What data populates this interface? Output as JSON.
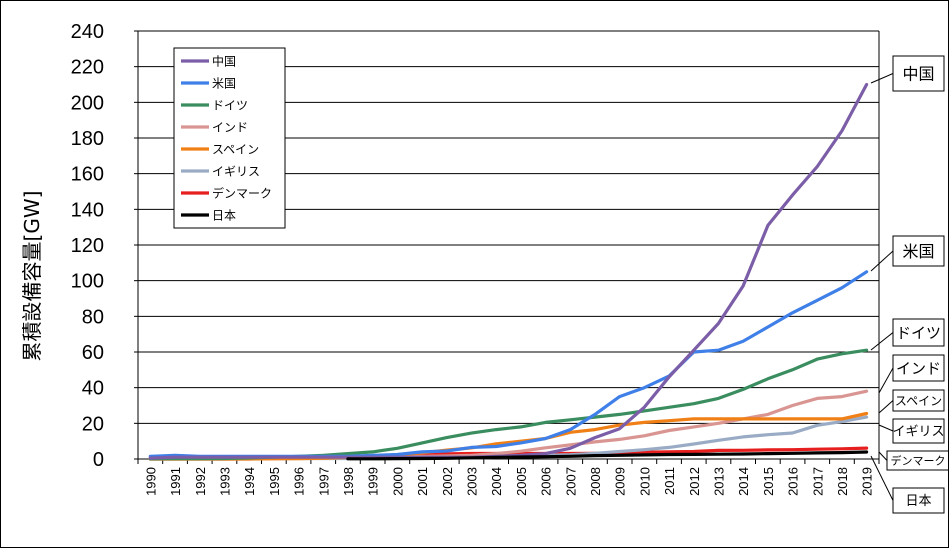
{
  "chart_data": {
    "type": "line",
    "ylabel": "累積設備容量[GW]",
    "xlabel": "",
    "ylim": [
      0,
      240
    ],
    "yticks": [
      0,
      20,
      40,
      60,
      80,
      100,
      120,
      140,
      160,
      180,
      200,
      220,
      240
    ],
    "grid": true,
    "legend_position": "top-left",
    "categories": [
      "1990",
      "1991",
      "1992",
      "1993",
      "1994",
      "1995",
      "1996",
      "1997",
      "1998",
      "1999",
      "2000",
      "2001",
      "2002",
      "2003",
      "2004",
      "2005",
      "2006",
      "2007",
      "2008",
      "2009",
      "2010",
      "2011",
      "2012",
      "2013",
      "2014",
      "2015",
      "2016",
      "2017",
      "2018",
      "2019"
    ],
    "series": [
      {
        "name": "中国",
        "color": "#7b5ea7",
        "values": [
          0.5,
          1,
          1,
          1,
          1,
          1,
          1,
          1,
          1,
          1,
          1,
          1,
          1,
          1,
          1.5,
          2,
          3,
          6,
          12,
          17,
          29,
          46,
          61,
          76,
          97,
          131,
          148,
          164,
          184,
          210
        ],
        "callout": "中国"
      },
      {
        "name": "米国",
        "color": "#3f7fe8",
        "values": [
          1.5,
          2,
          1.5,
          1.5,
          1.5,
          1.5,
          1.5,
          1.5,
          1.5,
          2,
          2.5,
          4,
          4.5,
          6.5,
          7,
          9,
          11.5,
          16.5,
          25,
          35,
          40,
          46.5,
          60,
          61,
          66,
          74,
          82,
          89,
          96,
          105
        ],
        "callout": "米国"
      },
      {
        "name": "ドイツ",
        "color": "#3a8d5f",
        "values": [
          0.1,
          0.2,
          0.2,
          0.3,
          0.6,
          1,
          1.5,
          2,
          3,
          4,
          6,
          9,
          12,
          14.5,
          16.5,
          18,
          20.5,
          22,
          23.5,
          25,
          27,
          29,
          31,
          34,
          39,
          45,
          50,
          56,
          59,
          61
        ],
        "callout": "ドイツ"
      },
      {
        "name": "インド",
        "color": "#d99591",
        "values": [
          0,
          0,
          0,
          0,
          0.1,
          0.3,
          0.6,
          0.8,
          1,
          1.1,
          1.2,
          1.5,
          1.7,
          2.1,
          3,
          4.4,
          6.3,
          7.9,
          9.6,
          11,
          13,
          16,
          18,
          20,
          22.5,
          25,
          30,
          34,
          35,
          38
        ],
        "callout": "インド"
      },
      {
        "name": "スペイン",
        "color": "#f07f16",
        "values": [
          0,
          0,
          0,
          0,
          0,
          0.1,
          0.2,
          0.4,
          0.9,
          1.5,
          2.2,
          3.5,
          5,
          6.2,
          8.5,
          10,
          11.5,
          15,
          16.5,
          19,
          20.5,
          21.5,
          22.5,
          22.5,
          22.5,
          22.5,
          22.5,
          22.5,
          22.5,
          25.5
        ],
        "callout": "スペイン"
      },
      {
        "name": "イギリス",
        "color": "#9aacc5",
        "values": [
          0,
          0,
          0,
          0,
          0,
          0.2,
          0.3,
          0.3,
          0.3,
          0.4,
          0.4,
          0.5,
          0.6,
          0.7,
          0.9,
          1.3,
          2,
          2.4,
          3.2,
          4.2,
          5.2,
          6.5,
          8.4,
          10.5,
          12.4,
          13.6,
          14.6,
          18.9,
          21,
          23.5
        ],
        "callout": "イギリス"
      },
      {
        "name": "デンマーク",
        "color": "#e61e1e",
        "values": [
          0.3,
          0.4,
          0.5,
          0.5,
          0.5,
          0.6,
          0.8,
          1.1,
          1.4,
          1.7,
          2.4,
          2.5,
          2.9,
          3.1,
          3.1,
          3.1,
          3.1,
          3.1,
          3.2,
          3.5,
          3.8,
          4,
          4.2,
          4.8,
          4.9,
          5.1,
          5.2,
          5.5,
          5.7,
          6.1
        ],
        "callout": "デンマーク"
      },
      {
        "name": "日本",
        "color": "#000000",
        "start": "1998",
        "values": [
          null,
          null,
          null,
          null,
          null,
          null,
          null,
          null,
          0.1,
          0.1,
          0.2,
          0.3,
          0.4,
          0.7,
          0.9,
          1.1,
          1.3,
          1.5,
          1.9,
          2.1,
          2.3,
          2.5,
          2.6,
          2.7,
          2.8,
          3,
          3.2,
          3.4,
          3.6,
          3.9
        ],
        "callout": "日本"
      }
    ]
  }
}
